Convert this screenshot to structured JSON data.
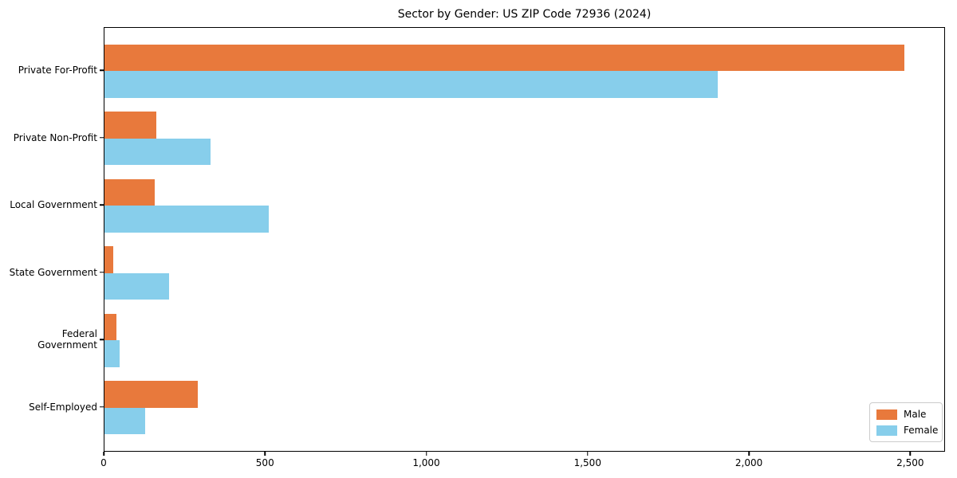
{
  "chart_data": {
    "type": "bar",
    "orientation": "horizontal",
    "title": "Sector by Gender: US ZIP Code 72936 (2024)",
    "categories": [
      "Private For-Profit",
      "Private Non-Profit",
      "Local Government",
      "State Government",
      "Federal Government",
      "Self-Employed"
    ],
    "series": [
      {
        "name": "Male",
        "color": "#E8793C",
        "values": [
          2480,
          160,
          155,
          27,
          37,
          290
        ]
      },
      {
        "name": "Female",
        "color": "#87CEEB",
        "values": [
          1900,
          330,
          510,
          200,
          47,
          125
        ]
      }
    ],
    "xlabel": "",
    "ylabel": "",
    "xlim": [
      0,
      2608
    ],
    "xticks": [
      0,
      500,
      1000,
      1500,
      2000,
      2500
    ],
    "xtick_labels": [
      "0",
      "500",
      "1,000",
      "1,500",
      "2,000",
      "2,500"
    ],
    "legend_position": "lower right",
    "grid": false,
    "frame": true
  }
}
